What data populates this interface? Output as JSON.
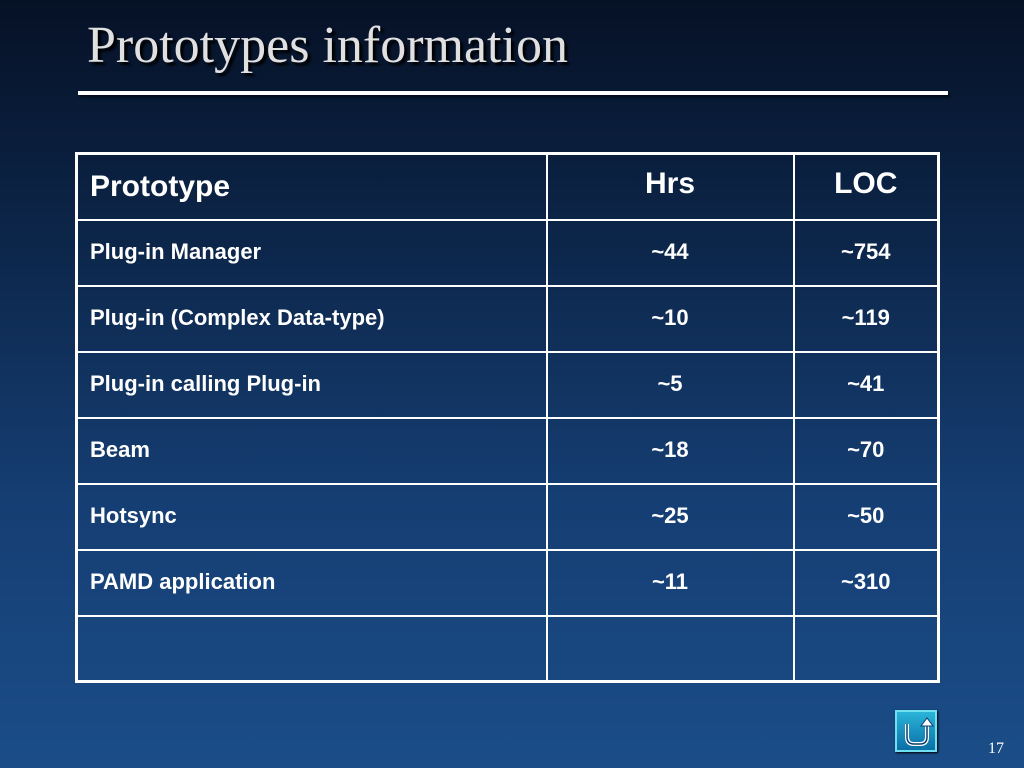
{
  "slide": {
    "title": "Prototypes information",
    "page_number": "17"
  },
  "table": {
    "headers": [
      "Prototype",
      "Hrs",
      "LOC"
    ],
    "rows": [
      [
        "Plug-in Manager",
        "~44",
        "~754"
      ],
      [
        "Plug-in (Complex Data-type)",
        "~10",
        "~119"
      ],
      [
        "Plug-in calling Plug-in",
        "~5",
        "~41"
      ],
      [
        "Beam",
        "~18",
        "~70"
      ],
      [
        "Hotsync",
        "~25",
        "~50"
      ],
      [
        "PAMD application",
        "~11",
        "~310"
      ],
      [
        "",
        "",
        ""
      ]
    ]
  },
  "nav": {
    "return_icon": "u-turn-arrow-icon"
  },
  "colors": {
    "background_top": "#061126",
    "background_bottom": "#1b4d88",
    "text": "#ffffff",
    "title_text": "#e0e0e0",
    "nav_button": "#1a8fc4"
  }
}
